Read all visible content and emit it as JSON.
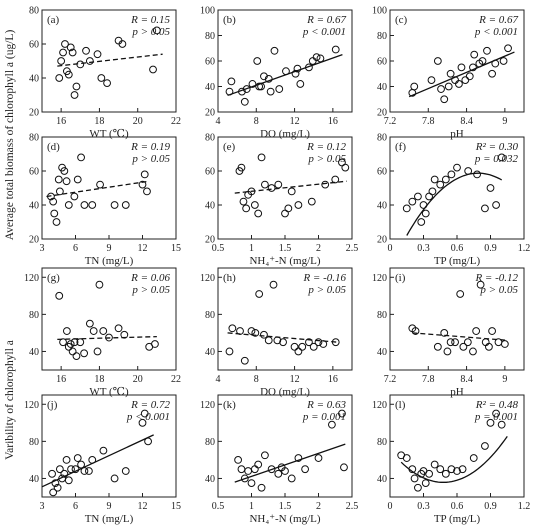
{
  "figure": {
    "ylabel_top": "Average total biomass of chlorophyll a (ug/L)",
    "ylabel_bottom": "Varibility of chlorophyll a"
  },
  "chart_data": [
    {
      "id": "a",
      "type": "scatter",
      "panel_label": "(a)",
      "stats": [
        "R = 0.15",
        "p > 0.05"
      ],
      "xlabel": "WT (℃)",
      "ylabel": "",
      "xlim": [
        15,
        22
      ],
      "ylim": [
        20,
        80
      ],
      "xticks": [
        16,
        18,
        20,
        22
      ],
      "yticks": [
        20,
        40,
        60,
        80
      ],
      "x": [
        15.9,
        16.0,
        16.1,
        16.2,
        16.3,
        16.4,
        16.5,
        16.6,
        16.7,
        16.8,
        17.0,
        17.3,
        17.5,
        17.9,
        18.1,
        18.4,
        19.0,
        19.2,
        20.8,
        21.0
      ],
      "y": [
        40,
        50,
        55,
        60,
        44,
        42,
        58,
        55,
        30,
        35,
        48,
        56,
        50,
        54,
        40,
        37,
        62,
        60,
        45,
        68
      ],
      "fit": {
        "kind": "linear",
        "style": "dashed",
        "x": [
          15.8,
          21.3
        ],
        "y": [
          47,
          54
        ]
      }
    },
    {
      "id": "b",
      "type": "scatter",
      "panel_label": "(b)",
      "stats": [
        "R = 0.67",
        "p < 0.001"
      ],
      "xlabel": "DO (mg/L)",
      "ylabel": "",
      "xlim": [
        4,
        18
      ],
      "ylim": [
        20,
        100
      ],
      "xticks": [
        4,
        8,
        12,
        16
      ],
      "yticks": [
        20,
        40,
        60,
        80,
        100
      ],
      "x": [
        5.2,
        5.4,
        6.5,
        6.8,
        7.0,
        7.6,
        8.1,
        8.3,
        8.5,
        8.8,
        9.3,
        9.5,
        9.9,
        10.4,
        11.1,
        12.1,
        12.3,
        12.6,
        13.5,
        13.9,
        14.3,
        14.7,
        16.3
      ],
      "y": [
        36,
        44,
        36,
        28,
        38,
        42,
        60,
        40,
        40,
        48,
        46,
        36,
        68,
        38,
        52,
        50,
        54,
        42,
        55,
        60,
        63,
        62,
        69
      ],
      "fit": {
        "kind": "linear",
        "style": "solid",
        "x": [
          5.0,
          17.0
        ],
        "y": [
          33,
          65
        ]
      }
    },
    {
      "id": "c",
      "type": "scatter",
      "panel_label": "(c)",
      "stats": [
        "R = 0.67",
        "p < 0.001"
      ],
      "xlabel": "pH",
      "ylabel": "",
      "xlim": [
        7.2,
        9.3
      ],
      "ylim": [
        20,
        100
      ],
      "xticks": [
        7.2,
        7.8,
        8.4,
        9.0
      ],
      "yticks": [
        20,
        40,
        60,
        80,
        100
      ],
      "x": [
        7.55,
        7.58,
        7.85,
        7.95,
        8.0,
        8.05,
        8.12,
        8.15,
        8.22,
        8.28,
        8.32,
        8.38,
        8.45,
        8.5,
        8.52,
        8.6,
        8.65,
        8.72,
        8.8,
        8.85,
        8.98,
        9.05
      ],
      "y": [
        35,
        40,
        45,
        60,
        38,
        30,
        40,
        50,
        45,
        42,
        55,
        45,
        48,
        55,
        65,
        58,
        60,
        68,
        50,
        58,
        60,
        70
      ],
      "fit": {
        "kind": "linear",
        "style": "solid",
        "x": [
          7.5,
          9.15
        ],
        "y": [
          32,
          67
        ]
      }
    },
    {
      "id": "d",
      "type": "scatter",
      "panel_label": "(d)",
      "stats": [
        "R = 0.19",
        "p > 0.05"
      ],
      "xlabel": "TN (mg/L)",
      "ylabel": "",
      "xlim": [
        3,
        15
      ],
      "ylim": [
        20,
        80
      ],
      "xticks": [
        3,
        6,
        9,
        12,
        15
      ],
      "yticks": [
        20,
        40,
        60,
        80
      ],
      "x": [
        3.8,
        4.0,
        4.1,
        4.3,
        4.5,
        4.6,
        4.8,
        5.0,
        5.2,
        5.4,
        5.9,
        6.2,
        6.5,
        6.8,
        7.5,
        8.2,
        9.5,
        10.5,
        12.0,
        12.2,
        12.4
      ],
      "y": [
        45,
        42,
        35,
        30,
        55,
        48,
        62,
        60,
        54,
        40,
        45,
        55,
        68,
        40,
        40,
        52,
        40,
        40,
        52,
        58,
        48
      ],
      "fit": {
        "kind": "linear",
        "style": "dashed",
        "x": [
          3.4,
          12.6
        ],
        "y": [
          45,
          54
        ]
      }
    },
    {
      "id": "e",
      "type": "scatter",
      "panel_label": "(e)",
      "stats": [
        "R = 0.12",
        "p > 0.05"
      ],
      "xlabel": "NH₄⁺-N (mg/L)",
      "ylabel": "",
      "xlim": [
        0.5,
        2.5
      ],
      "ylim": [
        20,
        80
      ],
      "xticks": [
        0.5,
        1.0,
        1.5,
        2.0,
        2.5
      ],
      "yticks": [
        20,
        40,
        60,
        80
      ],
      "x": [
        0.82,
        0.85,
        0.88,
        0.92,
        0.95,
        1.0,
        1.05,
        1.1,
        1.15,
        1.2,
        1.3,
        1.4,
        1.5,
        1.55,
        1.6,
        1.7,
        1.9,
        2.1,
        2.25,
        2.35,
        2.4
      ],
      "y": [
        60,
        62,
        42,
        38,
        46,
        48,
        40,
        35,
        68,
        52,
        50,
        52,
        35,
        38,
        48,
        40,
        42,
        52,
        55,
        65,
        62
      ],
      "fit": {
        "kind": "linear",
        "style": "dashed",
        "x": [
          0.75,
          2.42
        ],
        "y": [
          47,
          54
        ]
      }
    },
    {
      "id": "f",
      "type": "scatter",
      "panel_label": "(f)",
      "stats": [
        "R² = 0.30",
        "p = 0.032"
      ],
      "xlabel": "TP (mg/L)",
      "ylabel": "",
      "xlim": [
        0.0,
        1.2
      ],
      "ylim": [
        20,
        80
      ],
      "xticks": [
        0.0,
        0.3,
        0.6,
        0.9,
        1.2
      ],
      "yticks": [
        20,
        40,
        60,
        80
      ],
      "x": [
        0.15,
        0.2,
        0.25,
        0.28,
        0.3,
        0.32,
        0.35,
        0.38,
        0.4,
        0.45,
        0.5,
        0.55,
        0.6,
        0.7,
        0.78,
        0.85,
        0.9,
        0.95,
        1.0
      ],
      "y": [
        38,
        42,
        45,
        30,
        40,
        35,
        45,
        48,
        55,
        52,
        55,
        58,
        62,
        60,
        58,
        38,
        50,
        40,
        68
      ],
      "fit": {
        "kind": "quadratic",
        "style": "solid",
        "coef": [
          -89.6,
          141.5,
          2.85
        ],
        "range": [
          0.15,
          1.0
        ]
      }
    },
    {
      "id": "g",
      "type": "scatter",
      "panel_label": "(g)",
      "stats": [
        "R = 0.06",
        "p > 0.05"
      ],
      "xlabel": "WT (℃)",
      "ylabel": "",
      "xlim": [
        15,
        22
      ],
      "ylim": [
        20,
        130
      ],
      "xticks": [
        16,
        18,
        20,
        22
      ],
      "yticks": [
        40,
        80,
        120
      ],
      "x": [
        15.9,
        16.1,
        16.3,
        16.4,
        16.5,
        16.6,
        16.7,
        16.8,
        17.0,
        17.2,
        17.5,
        17.7,
        17.9,
        18.0,
        18.2,
        18.5,
        19.0,
        19.3,
        20.6,
        20.9
      ],
      "y": [
        100,
        50,
        62,
        45,
        48,
        40,
        50,
        35,
        50,
        38,
        70,
        62,
        40,
        112,
        62,
        55,
        65,
        58,
        45,
        48
      ],
      "fit": {
        "kind": "linear",
        "style": "dashed",
        "x": [
          15.8,
          21.0
        ],
        "y": [
          53,
          56
        ]
      }
    },
    {
      "id": "h",
      "type": "scatter",
      "panel_label": "(h)",
      "stats": [
        "R = -0.16",
        "p > 0.05"
      ],
      "xlabel": "DO (mg/L)",
      "ylabel": "",
      "xlim": [
        4,
        18
      ],
      "ylim": [
        20,
        130
      ],
      "xticks": [
        4,
        8,
        12,
        16
      ],
      "yticks": [
        40,
        80,
        120
      ],
      "x": [
        5.2,
        5.5,
        6.3,
        6.8,
        7.5,
        7.9,
        8.3,
        8.8,
        9.3,
        9.8,
        10.2,
        10.8,
        12.0,
        12.4,
        12.8,
        13.5,
        14.0,
        14.5,
        15.0,
        16.3
      ],
      "y": [
        40,
        65,
        62,
        30,
        62,
        60,
        102,
        58,
        52,
        112,
        52,
        50,
        45,
        40,
        45,
        50,
        45,
        50,
        48,
        50
      ],
      "fit": {
        "kind": "linear",
        "style": "dashed",
        "x": [
          5.0,
          16.5
        ],
        "y": [
          60,
          50
        ]
      }
    },
    {
      "id": "i",
      "type": "scatter",
      "panel_label": "(i)",
      "stats": [
        "R = -0.12",
        "p > 0.05"
      ],
      "xlabel": "pH",
      "ylabel": "",
      "xlim": [
        7.2,
        9.3
      ],
      "ylim": [
        20,
        130
      ],
      "xticks": [
        7.2,
        7.8,
        8.4,
        9.0
      ],
      "yticks": [
        40,
        80,
        120
      ],
      "x": [
        7.55,
        7.6,
        7.95,
        8.05,
        8.1,
        8.15,
        8.22,
        8.3,
        8.35,
        8.42,
        8.5,
        8.55,
        8.62,
        8.7,
        8.75,
        8.8,
        8.9,
        9.0
      ],
      "y": [
        65,
        62,
        45,
        60,
        40,
        50,
        50,
        102,
        45,
        50,
        40,
        62,
        112,
        50,
        45,
        62,
        50,
        48
      ],
      "fit": {
        "kind": "linear",
        "style": "dashed",
        "x": [
          7.55,
          9.05
        ],
        "y": [
          60,
          52
        ]
      }
    },
    {
      "id": "j",
      "type": "scatter",
      "panel_label": "(j)",
      "stats": [
        "R = 0.72",
        "p < 0.001"
      ],
      "xlabel": "TN (mg/L)",
      "ylabel": "",
      "xlim": [
        3,
        15
      ],
      "ylim": [
        20,
        130
      ],
      "xticks": [
        3,
        6,
        9,
        12,
        15
      ],
      "yticks": [
        40,
        80,
        120
      ],
      "x": [
        3.9,
        4.0,
        4.2,
        4.4,
        4.6,
        4.8,
        5.0,
        5.2,
        5.4,
        5.6,
        6.0,
        6.2,
        6.5,
        6.8,
        7.2,
        7.5,
        8.5,
        9.5,
        10.5,
        12.0,
        12.2,
        12.5
      ],
      "y": [
        45,
        25,
        35,
        30,
        50,
        40,
        45,
        60,
        38,
        50,
        50,
        62,
        55,
        48,
        48,
        60,
        70,
        40,
        48,
        100,
        110,
        80
      ],
      "fit": {
        "kind": "linear",
        "style": "solid",
        "x": [
          3.0,
          13.0
        ],
        "y": [
          31,
          87
        ]
      }
    },
    {
      "id": "k",
      "type": "scatter",
      "panel_label": "(k)",
      "stats": [
        "R = 0.63",
        "p = 0.001"
      ],
      "xlabel": "NH₄⁺-N (mg/L)",
      "ylabel": "",
      "xlim": [
        0.5,
        2.5
      ],
      "ylim": [
        20,
        130
      ],
      "xticks": [
        0.5,
        1.0,
        1.5,
        2.0,
        2.5
      ],
      "yticks": [
        40,
        80,
        120
      ],
      "x": [
        0.8,
        0.85,
        0.9,
        0.95,
        1.0,
        1.05,
        1.1,
        1.15,
        1.2,
        1.3,
        1.4,
        1.45,
        1.5,
        1.6,
        1.7,
        1.8,
        2.0,
        2.2,
        2.35,
        2.38
      ],
      "y": [
        60,
        50,
        40,
        48,
        35,
        50,
        55,
        30,
        65,
        50,
        45,
        52,
        48,
        40,
        62,
        50,
        62,
        98,
        110,
        52
      ],
      "fit": {
        "kind": "linear",
        "style": "solid",
        "x": [
          0.75,
          2.4
        ],
        "y": [
          36,
          77
        ]
      }
    },
    {
      "id": "l",
      "type": "scatter",
      "panel_label": "(l)",
      "stats": [
        "R² = 0.48",
        "p = 0.001"
      ],
      "xlabel": "TP (mg/L)",
      "ylabel": "",
      "xlim": [
        0.0,
        1.2
      ],
      "ylim": [
        20,
        130
      ],
      "xticks": [
        0.0,
        0.3,
        0.6,
        0.9,
        1.2
      ],
      "yticks": [
        40,
        80,
        120
      ],
      "x": [
        0.1,
        0.15,
        0.2,
        0.22,
        0.25,
        0.28,
        0.3,
        0.32,
        0.35,
        0.4,
        0.45,
        0.5,
        0.55,
        0.6,
        0.65,
        0.75,
        0.85,
        0.9,
        0.95,
        1.0
      ],
      "y": [
        65,
        62,
        50,
        40,
        30,
        45,
        48,
        35,
        45,
        55,
        50,
        45,
        50,
        48,
        50,
        62,
        75,
        100,
        110,
        98
      ],
      "fit": {
        "kind": "quadratic",
        "style": "solid",
        "coef": [
          151.7,
          -145.1,
          70.5
        ],
        "range": [
          0.1,
          1.05
        ]
      }
    }
  ]
}
